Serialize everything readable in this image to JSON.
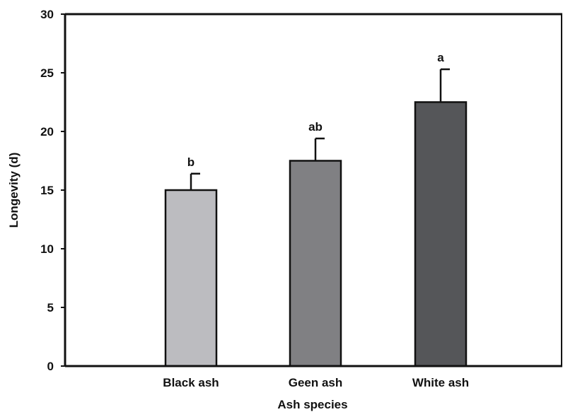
{
  "chart_data": {
    "type": "bar",
    "categories": [
      "Black ash",
      "Geen ash",
      "White ash"
    ],
    "values": [
      15.0,
      17.5,
      22.5
    ],
    "errors": [
      1.4,
      1.9,
      2.8
    ],
    "significance_labels": [
      "b",
      "ab",
      "a"
    ],
    "colors": [
      "#bcbcc0",
      "#808083",
      "#555659"
    ],
    "title": "",
    "xlabel": "Ash species",
    "ylabel": "Longevity (d)",
    "ylim": [
      0,
      30
    ],
    "yticks": [
      "0",
      "5",
      "10",
      "15",
      "20",
      "25",
      "30"
    ],
    "grid": false,
    "legend": "none"
  }
}
